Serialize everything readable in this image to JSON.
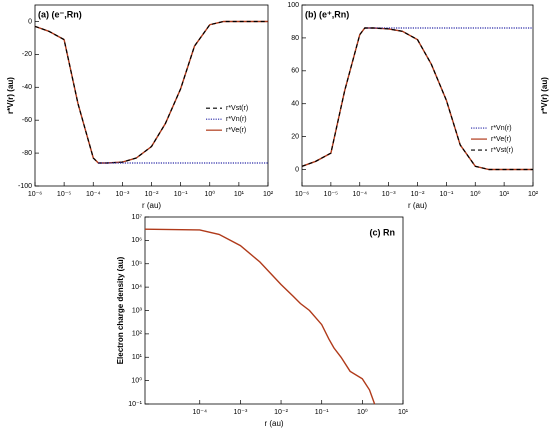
{
  "chart_data": [
    {
      "type": "line",
      "title": "(a) (e⁻,Rn)",
      "xlabel": "r (au)",
      "ylabel": "r*V(r) (au)",
      "ylabel_side": "left",
      "xlog": true,
      "ylog": false,
      "xlim": [
        1e-06,
        100
      ],
      "ylim": [
        -100,
        10
      ],
      "xticks": [
        {
          "value": 1e-06,
          "label": "10⁻⁶"
        },
        {
          "value": 1e-05,
          "label": "10⁻⁵"
        },
        {
          "value": 0.0001,
          "label": "10⁻⁴"
        },
        {
          "value": 0.001,
          "label": "10⁻³"
        },
        {
          "value": 0.01,
          "label": "10⁻²"
        },
        {
          "value": 0.1,
          "label": "10⁻¹"
        },
        {
          "value": 1,
          "label": "10⁰"
        },
        {
          "value": 10,
          "label": "10¹"
        },
        {
          "value": 100,
          "label": "10²"
        }
      ],
      "yticks": [
        0,
        -20,
        -40,
        -60,
        -80,
        -100
      ],
      "legend": "center right",
      "series": [
        {
          "name": "r*Vst(r)",
          "color": "#000000",
          "dash": "dashed",
          "x": [
            1e-06,
            3e-06,
            1e-05,
            3e-05,
            0.0001,
            0.00015,
            0.0003,
            0.001,
            0.003,
            0.01,
            0.03,
            0.1,
            0.3,
            1,
            3,
            10,
            100
          ],
          "values": [
            -3,
            -6,
            -11,
            -50,
            -83,
            -86,
            -86,
            -85.5,
            -83,
            -76,
            -62,
            -41,
            -15,
            -2,
            0,
            0,
            0
          ]
        },
        {
          "name": "r*Vn(r)",
          "color": "#2a2aa8",
          "dash": "dotted",
          "x": [
            0.00015,
            100
          ],
          "values": [
            -86,
            -86
          ]
        },
        {
          "name": "r*Ve(r)",
          "color": "#b03a1a",
          "dash": "solid",
          "x": [
            1e-06,
            3e-06,
            1e-05,
            3e-05,
            0.0001,
            0.00015,
            0.0003,
            0.001,
            0.003,
            0.01,
            0.03,
            0.1,
            0.3,
            1,
            3,
            10,
            100
          ],
          "values": [
            -3,
            -6,
            -11,
            -50,
            -83,
            -86,
            -86,
            -85.5,
            -83,
            -76,
            -62,
            -41,
            -15,
            -2,
            0,
            0,
            0
          ]
        }
      ]
    },
    {
      "type": "line",
      "title": "(b) (e⁺,Rn)",
      "xlabel": "r (au)",
      "ylabel": "r*V(r) (au)",
      "ylabel_side": "right",
      "xlog": true,
      "ylog": false,
      "xlim": [
        1e-06,
        100
      ],
      "ylim": [
        -10,
        100
      ],
      "xticks": [
        {
          "value": 1e-06,
          "label": "10⁻⁶"
        },
        {
          "value": 1e-05,
          "label": "10⁻⁵"
        },
        {
          "value": 0.0001,
          "label": "10⁻⁴"
        },
        {
          "value": 0.001,
          "label": "10⁻³"
        },
        {
          "value": 0.01,
          "label": "10⁻²"
        },
        {
          "value": 0.1,
          "label": "10⁻¹"
        },
        {
          "value": 1,
          "label": "10⁰"
        },
        {
          "value": 10,
          "label": "10¹"
        },
        {
          "value": 100,
          "label": "10²"
        }
      ],
      "yticks": [
        0,
        20,
        40,
        60,
        80,
        100
      ],
      "legend": "center right",
      "series": [
        {
          "name": "r*Vn(r)",
          "color": "#2a2aa8",
          "dash": "dotted",
          "x": [
            0.00015,
            100
          ],
          "values": [
            86,
            86
          ]
        },
        {
          "name": "r*Ve(r)",
          "color": "#b03a1a",
          "dash": "solid",
          "x": [
            1e-06,
            3e-06,
            1e-05,
            3e-05,
            0.0001,
            0.00015,
            0.0003,
            0.001,
            0.003,
            0.01,
            0.03,
            0.1,
            0.3,
            1,
            3,
            10,
            100
          ],
          "values": [
            2,
            5,
            10,
            48,
            82,
            86,
            86,
            85.5,
            84,
            79,
            64,
            42,
            15,
            2,
            0,
            0,
            0
          ]
        },
        {
          "name": "r*Vst(r)",
          "color": "#000000",
          "dash": "dashed",
          "x": [
            1e-06,
            3e-06,
            1e-05,
            3e-05,
            0.0001,
            0.00015,
            0.0003,
            0.001,
            0.003,
            0.01,
            0.03,
            0.1,
            0.3,
            1,
            3,
            10,
            100
          ],
          "values": [
            2,
            5,
            10,
            48,
            82,
            86,
            86,
            85.5,
            84,
            79,
            64,
            42,
            15,
            2,
            0,
            0,
            0
          ]
        }
      ]
    },
    {
      "type": "line",
      "title": "(c) Rn",
      "xlabel": "r (au)",
      "ylabel": "Electron charge density (au)",
      "ylabel_side": "left",
      "xlog": true,
      "ylog": true,
      "xlim": [
        4.5e-06,
        10
      ],
      "ylim": [
        0.1,
        10000000
      ],
      "xticks": [
        {
          "value": 0.0001,
          "label": "10⁻⁴"
        },
        {
          "value": 0.001,
          "label": "10⁻³"
        },
        {
          "value": 0.01,
          "label": "10⁻²"
        },
        {
          "value": 0.1,
          "label": "10⁻¹"
        },
        {
          "value": 1,
          "label": "10⁰"
        },
        {
          "value": 10,
          "label": "10¹"
        }
      ],
      "yticks": [
        {
          "value": 0.1,
          "label": "10⁻¹"
        },
        {
          "value": 1,
          "label": "10⁰"
        },
        {
          "value": 10,
          "label": "10¹"
        },
        {
          "value": 100,
          "label": "10²"
        },
        {
          "value": 1000,
          "label": "10³"
        },
        {
          "value": 10000,
          "label": "10⁴"
        },
        {
          "value": 100000,
          "label": "10⁵"
        },
        {
          "value": 1000000,
          "label": "10⁶"
        },
        {
          "value": 10000000,
          "label": "10⁷"
        }
      ],
      "series": [
        {
          "color": "#b03a1a",
          "dash": "solid",
          "x": [
            4.5e-06,
            0.0001,
            0.0003,
            0.001,
            0.003,
            0.01,
            0.02,
            0.03,
            0.05,
            0.1,
            0.15,
            0.2,
            0.3,
            0.5,
            1,
            1.5,
            2
          ],
          "values": [
            3000000,
            2800000,
            1800000,
            600000,
            120000,
            13000,
            4000,
            2000,
            1000,
            250,
            60,
            25,
            10,
            2.5,
            1.2,
            0.4,
            0.1
          ]
        }
      ]
    }
  ]
}
